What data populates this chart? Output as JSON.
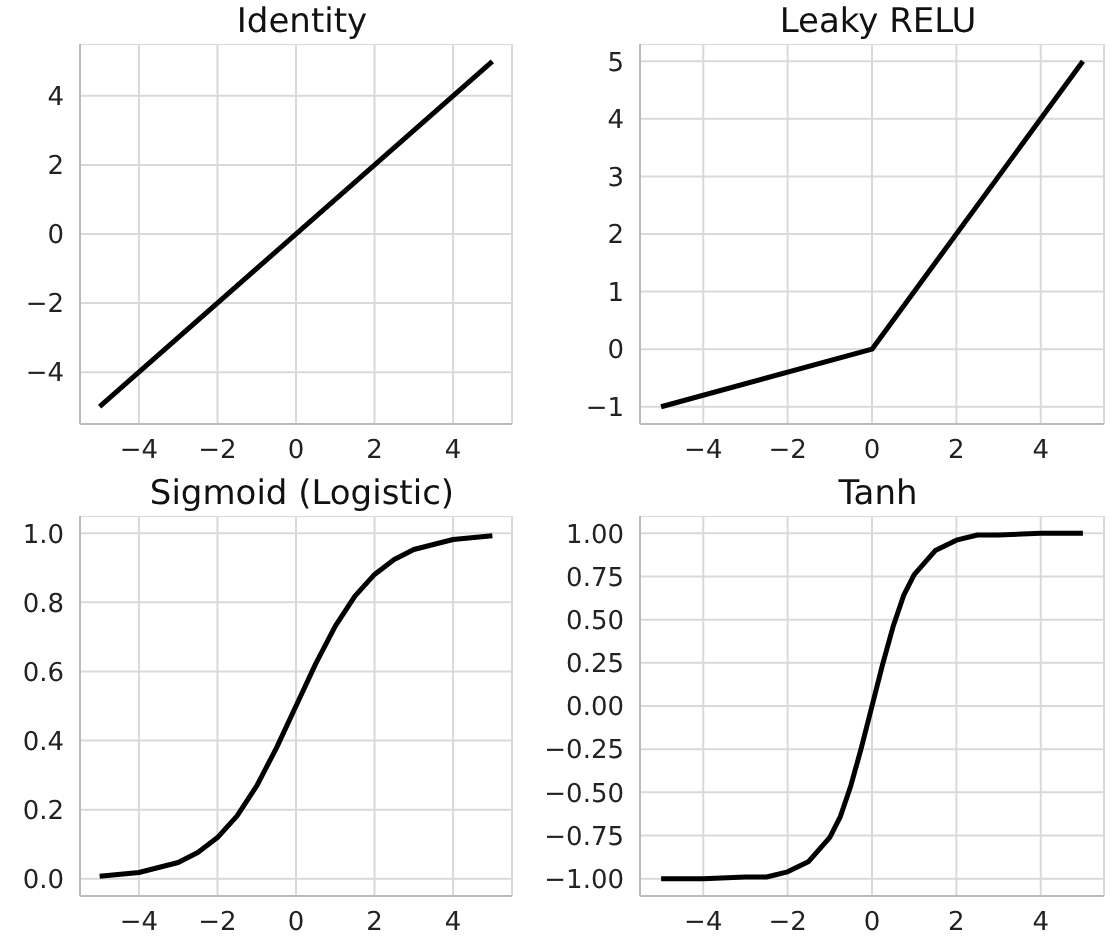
{
  "chart_data": [
    {
      "type": "line",
      "title": "Identity",
      "x": [
        -5,
        5
      ],
      "values": [
        -5,
        5
      ],
      "color": "#000000",
      "xlim": [
        -5.5,
        5.5
      ],
      "ylim": [
        -5.5,
        5.5
      ],
      "xticks": [
        -4,
        -2,
        0,
        2,
        4
      ],
      "yticks": [
        -4,
        -2,
        0,
        2,
        4
      ],
      "grid": true
    },
    {
      "type": "line",
      "title": "Leaky RELU",
      "x": [
        -5,
        0,
        5
      ],
      "values": [
        -1,
        0,
        5
      ],
      "color": "#000000",
      "xlim": [
        -5.5,
        5.5
      ],
      "ylim": [
        -1.3,
        5.3
      ],
      "xticks": [
        -4,
        -2,
        0,
        2,
        4
      ],
      "yticks": [
        -1,
        0,
        1,
        2,
        3,
        4,
        5
      ],
      "grid": true
    },
    {
      "type": "line",
      "title": "Sigmoid (Logistic)",
      "x": [
        -5,
        -4,
        -3,
        -2.5,
        -2,
        -1.5,
        -1,
        -0.5,
        0,
        0.5,
        1,
        1.5,
        2,
        2.5,
        3,
        4,
        5
      ],
      "values": [
        0.007,
        0.018,
        0.047,
        0.076,
        0.119,
        0.182,
        0.269,
        0.378,
        0.5,
        0.622,
        0.731,
        0.818,
        0.881,
        0.924,
        0.953,
        0.982,
        0.993
      ],
      "color": "#000000",
      "xlim": [
        -5.5,
        5.5
      ],
      "ylim": [
        -0.05,
        1.05
      ],
      "xticks": [
        -4,
        -2,
        0,
        2,
        4
      ],
      "yticks": [
        {
          "value": 0,
          "label": "0.0"
        },
        0.2,
        0.4,
        0.6,
        0.8,
        {
          "value": 1,
          "label": "1.0"
        }
      ],
      "grid": true
    },
    {
      "type": "line",
      "title": "Tanh",
      "x": [
        -5,
        -4,
        -3,
        -2.5,
        -2,
        -1.5,
        -1,
        -0.75,
        -0.5,
        -0.25,
        0,
        0.25,
        0.5,
        0.75,
        1,
        1.5,
        2,
        2.5,
        3,
        4,
        5
      ],
      "values": [
        -1,
        -1,
        -0.99,
        -0.99,
        -0.96,
        -0.9,
        -0.76,
        -0.64,
        -0.46,
        -0.24,
        0,
        0.24,
        0.46,
        0.64,
        0.76,
        0.9,
        0.96,
        0.99,
        0.99,
        1,
        1
      ],
      "color": "#000000",
      "xlim": [
        -5.5,
        5.5
      ],
      "ylim": [
        -1.1,
        1.1
      ],
      "xticks": [
        -4,
        -2,
        0,
        2,
        4
      ],
      "yticks": [
        {
          "value": -1,
          "label": "−1.00"
        },
        {
          "value": -0.75,
          "label": "−0.75"
        },
        {
          "value": -0.5,
          "label": "−0.50"
        },
        {
          "value": -0.25,
          "label": "−0.25"
        },
        {
          "value": 0,
          "label": "0.00"
        },
        {
          "value": 0.25,
          "label": "0.25"
        },
        {
          "value": 0.5,
          "label": "0.50"
        },
        {
          "value": 0.75,
          "label": "0.75"
        },
        {
          "value": 1,
          "label": "1.00"
        }
      ],
      "grid": true
    }
  ]
}
